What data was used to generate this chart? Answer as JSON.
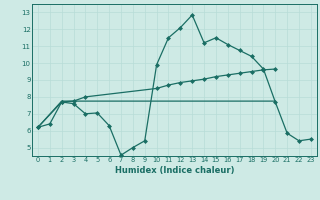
{
  "line1_x": [
    0,
    1,
    2,
    3,
    4,
    5,
    6,
    7,
    8,
    9,
    10,
    11,
    12,
    13,
    14,
    15,
    16,
    17,
    18,
    19,
    20,
    21,
    22,
    23
  ],
  "line1_y": [
    6.2,
    6.4,
    7.7,
    7.6,
    7.0,
    7.05,
    6.3,
    4.55,
    5.0,
    5.4,
    9.9,
    11.5,
    12.1,
    12.85,
    11.2,
    11.5,
    11.1,
    10.75,
    10.4,
    9.65,
    7.7,
    5.85,
    5.4,
    5.5
  ],
  "line2_x": [
    0,
    2,
    3,
    4,
    10,
    11,
    12,
    13,
    14,
    15,
    16,
    17,
    18,
    19,
    20
  ],
  "line2_y": [
    6.2,
    7.7,
    7.75,
    8.0,
    8.5,
    8.7,
    8.85,
    8.95,
    9.05,
    9.2,
    9.3,
    9.4,
    9.5,
    9.6,
    9.65
  ],
  "line3_x": [
    0,
    2,
    3,
    4,
    5,
    6,
    7,
    8,
    9,
    10,
    11,
    12,
    13,
    14,
    15,
    16,
    17,
    18,
    19,
    20
  ],
  "line3_y": [
    6.2,
    7.75,
    7.75,
    7.75,
    7.75,
    7.75,
    7.75,
    7.75,
    7.75,
    7.75,
    7.75,
    7.75,
    7.75,
    7.75,
    7.75,
    7.75,
    7.75,
    7.75,
    7.75,
    7.75
  ],
  "xlabel": "Humidex (Indice chaleur)",
  "xlim": [
    -0.5,
    23.5
  ],
  "ylim": [
    4.5,
    13.5
  ],
  "yticks": [
    5,
    6,
    7,
    8,
    9,
    10,
    11,
    12,
    13
  ],
  "xticks": [
    0,
    1,
    2,
    3,
    4,
    5,
    6,
    7,
    8,
    9,
    10,
    11,
    12,
    13,
    14,
    15,
    16,
    17,
    18,
    19,
    20,
    21,
    22,
    23
  ],
  "grid_color": "#b8ddd8",
  "bg_color": "#ceeae5",
  "line_color": "#1a6e64",
  "marker": "D",
  "markersize": 2.0,
  "lw": 0.9
}
